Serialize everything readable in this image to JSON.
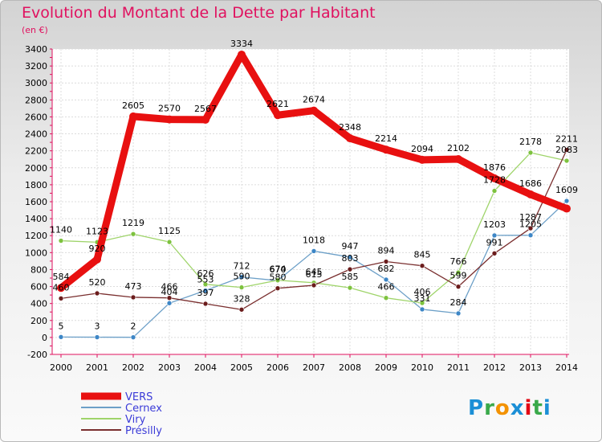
{
  "title": "Evolution du Montant de la Dette par Habitant",
  "subtitle": "(en €)",
  "logo": {
    "text": "Proxiti",
    "colors": [
      "#1b8fd6",
      "#3aa94a",
      "#f39200",
      "#1b8fd6",
      "#e30613",
      "#3aa94a",
      "#1b8fd6"
    ]
  },
  "chart_data": {
    "type": "line",
    "x": [
      "2000",
      "2001",
      "2002",
      "2003",
      "2004",
      "2005",
      "2006",
      "2007",
      "2008",
      "2009",
      "2010",
      "2011",
      "2012",
      "2013",
      "2014"
    ],
    "ylim": [
      -200,
      3400
    ],
    "yticks": [
      -200,
      0,
      200,
      400,
      600,
      800,
      1000,
      1200,
      1400,
      1600,
      1800,
      2000,
      2200,
      2400,
      2600,
      2800,
      3000,
      3200,
      3400
    ],
    "grid": true,
    "legend_position": "bottom-left",
    "series": [
      {
        "name": "VERS",
        "color": "#e81010",
        "width": 9,
        "values": [
          584,
          920,
          2605,
          2570,
          2567,
          3334,
          2621,
          2674,
          2348,
          2214,
          2094,
          2102,
          1876,
          1686,
          1519
        ],
        "labels": [
          "584",
          "920",
          "2605",
          "2570",
          "2567",
          "3334",
          "2621",
          "2674",
          "2348",
          "2214",
          "2094",
          "2102",
          "1876",
          "1686",
          ""
        ]
      },
      {
        "name": "Cernex",
        "color": "#6da0c8",
        "width": 1.3,
        "marker": "#3d86c6",
        "values": [
          5,
          3,
          2,
          404,
          553,
          712,
          670,
          1018,
          947,
          682,
          331,
          284,
          1203,
          1205,
          1609
        ],
        "labels": [
          "5",
          "3",
          "2",
          "404",
          "553",
          "712",
          "670",
          "1018",
          "947",
          "682",
          "331",
          "284",
          "1203",
          "1205",
          "1609"
        ]
      },
      {
        "name": "Viry",
        "color": "#9fd46a",
        "width": 1.3,
        "marker": "#7dc23e",
        "values": [
          1140,
          1123,
          1219,
          1125,
          626,
          590,
          674,
          645,
          585,
          466,
          406,
          766,
          1728,
          2178,
          2083
        ],
        "labels": [
          "1140",
          "1123",
          "1219",
          "1125",
          "626",
          "590",
          "674",
          "645",
          "585",
          "466",
          "406",
          "766",
          "1728",
          "2178",
          "2083"
        ]
      },
      {
        "name": "Présilly",
        "color": "#7a2f2f",
        "width": 1.3,
        "marker": "#6b1c1c",
        "values": [
          460,
          520,
          473,
          466,
          397,
          328,
          580,
          615,
          803,
          894,
          845,
          599,
          991,
          1287,
          2211
        ],
        "labels": [
          "460",
          "520",
          "473",
          "466",
          "397",
          "328",
          "580",
          "615",
          "803",
          "894",
          "845",
          "599",
          "991",
          "1287",
          "2211"
        ]
      }
    ]
  }
}
